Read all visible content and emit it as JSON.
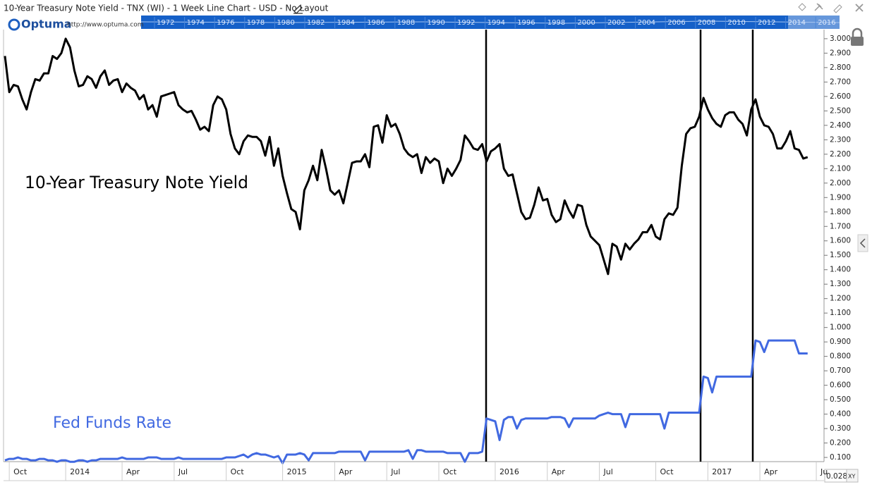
{
  "chart_data": {
    "type": "line",
    "title": "10-Year Treasury Note Yield - TNX (WI) - 1 Week Line Chart - USD - No Layout",
    "categories": [
      null,
      "Oct",
      null,
      null,
      null,
      null,
      null,
      null,
      null,
      null,
      null,
      null,
      null,
      null,
      "2014",
      null,
      null,
      null,
      null,
      null,
      null,
      null,
      null,
      null,
      null,
      null,
      null,
      "Apr",
      null,
      null,
      null,
      null,
      null,
      null,
      null,
      null,
      null,
      null,
      null,
      "Jul",
      null,
      null,
      null,
      null,
      null,
      null,
      null,
      null,
      null,
      null,
      null,
      "Oct",
      null,
      null,
      null,
      null,
      null,
      null,
      null,
      null,
      null,
      null,
      null,
      null,
      "2015",
      null,
      null,
      null,
      null,
      null,
      null,
      null,
      null,
      null,
      null,
      null,
      "Apr",
      null,
      null,
      null,
      null,
      null,
      null,
      null,
      null,
      null,
      null,
      null,
      "Jul",
      null,
      null,
      null,
      null,
      null,
      null,
      null,
      null,
      null,
      null,
      null,
      "Oct",
      null,
      null,
      null,
      null,
      null,
      null,
      null,
      null,
      null,
      null,
      null,
      null,
      "2016",
      null,
      null,
      null,
      null,
      null,
      null,
      null,
      null,
      null,
      null,
      null,
      "Apr",
      null,
      null,
      null,
      null,
      null,
      null,
      null,
      null,
      null,
      null,
      null,
      "Jul",
      null,
      null,
      null,
      null,
      null,
      null,
      null,
      null,
      null,
      null,
      null,
      null,
      "Oct",
      null,
      null,
      null,
      null,
      null,
      null,
      null,
      null,
      null,
      null,
      null,
      "2017",
      null,
      null,
      null,
      null,
      null,
      null,
      null,
      null,
      null,
      null,
      null,
      "Apr",
      null,
      null,
      null,
      null,
      null,
      null,
      null,
      null,
      null,
      null,
      null,
      null,
      "Ju"
    ],
    "series": [
      {
        "name": "10-Year Treasury Note Yield",
        "color": "#000000",
        "values": [
          2.88,
          2.63,
          2.68,
          2.67,
          2.58,
          2.51,
          2.63,
          2.72,
          2.71,
          2.76,
          2.76,
          2.88,
          2.86,
          2.9,
          3.0,
          2.94,
          2.78,
          2.67,
          2.68,
          2.74,
          2.72,
          2.66,
          2.74,
          2.78,
          2.68,
          2.71,
          2.72,
          2.63,
          2.69,
          2.66,
          2.64,
          2.58,
          2.61,
          2.51,
          2.54,
          2.46,
          2.6,
          2.61,
          2.62,
          2.63,
          2.54,
          2.51,
          2.49,
          2.5,
          2.44,
          2.37,
          2.39,
          2.36,
          2.54,
          2.6,
          2.58,
          2.51,
          2.34,
          2.24,
          2.2,
          2.29,
          2.33,
          2.32,
          2.32,
          2.29,
          2.19,
          2.32,
          2.12,
          2.24,
          2.05,
          1.93,
          1.82,
          1.8,
          1.68,
          1.95,
          2.02,
          2.12,
          2.02,
          2.23,
          2.1,
          1.95,
          1.92,
          1.95,
          1.86,
          2.0,
          2.14,
          2.15,
          2.15,
          2.2,
          2.11,
          2.39,
          2.4,
          2.28,
          2.47,
          2.39,
          2.41,
          2.34,
          2.24,
          2.2,
          2.18,
          2.2,
          2.07,
          2.18,
          2.14,
          2.17,
          2.15,
          2.0,
          2.1,
          2.05,
          2.1,
          2.16,
          2.33,
          2.29,
          2.24,
          2.23,
          2.27,
          2.15,
          2.22,
          2.24,
          2.27,
          2.1,
          2.05,
          2.06,
          1.93,
          1.8,
          1.75,
          1.76,
          1.85,
          1.97,
          1.88,
          1.89,
          1.78,
          1.73,
          1.75,
          1.88,
          1.81,
          1.76,
          1.85,
          1.84,
          1.71,
          1.63,
          1.6,
          1.57,
          1.47,
          1.37,
          1.58,
          1.56,
          1.47,
          1.58,
          1.54,
          1.58,
          1.61,
          1.66,
          1.66,
          1.71,
          1.63,
          1.61,
          1.75,
          1.79,
          1.78,
          1.83,
          2.12,
          2.34,
          2.38,
          2.39,
          2.46,
          2.59,
          2.51,
          2.45,
          2.41,
          2.39,
          2.47,
          2.49,
          2.49,
          2.44,
          2.41,
          2.33,
          2.51,
          2.58,
          2.46,
          2.4,
          2.39,
          2.34,
          2.24,
          2.24,
          2.29,
          2.36,
          2.24,
          2.23,
          2.17,
          2.18,
          null,
          null
        ]
      },
      {
        "name": "Fed Funds Rate",
        "color": "#4169e1",
        "values": [
          0.08,
          0.09,
          0.09,
          0.1,
          0.09,
          0.09,
          0.08,
          0.08,
          0.09,
          0.09,
          0.08,
          0.08,
          0.07,
          0.08,
          0.08,
          0.07,
          0.07,
          0.08,
          0.08,
          0.07,
          0.08,
          0.08,
          0.09,
          0.09,
          0.09,
          0.09,
          0.09,
          0.1,
          0.09,
          0.09,
          0.09,
          0.09,
          0.09,
          0.1,
          0.1,
          0.1,
          0.09,
          0.09,
          0.09,
          0.09,
          0.1,
          0.09,
          0.09,
          0.09,
          0.09,
          0.09,
          0.09,
          0.09,
          0.09,
          0.09,
          0.09,
          0.1,
          0.1,
          0.1,
          0.11,
          0.12,
          0.1,
          0.12,
          0.13,
          0.12,
          0.12,
          0.11,
          0.1,
          0.11,
          0.06,
          0.12,
          0.12,
          0.12,
          0.13,
          0.12,
          0.08,
          0.13,
          0.13,
          0.13,
          0.13,
          0.13,
          0.13,
          0.14,
          0.14,
          0.14,
          0.14,
          0.14,
          0.14,
          0.08,
          0.14,
          0.14,
          0.14,
          0.14,
          0.14,
          0.14,
          0.14,
          0.14,
          0.14,
          0.15,
          0.09,
          0.15,
          0.15,
          0.14,
          0.14,
          0.14,
          0.14,
          0.14,
          0.13,
          0.13,
          0.13,
          0.13,
          0.07,
          0.13,
          0.13,
          0.13,
          0.14,
          0.37,
          0.36,
          0.35,
          0.22,
          0.36,
          0.38,
          0.38,
          0.3,
          0.36,
          0.37,
          0.37,
          0.37,
          0.37,
          0.37,
          0.37,
          0.38,
          0.38,
          0.38,
          0.37,
          0.31,
          0.37,
          0.37,
          0.37,
          0.37,
          0.37,
          0.37,
          0.39,
          0.4,
          0.41,
          0.4,
          0.4,
          0.4,
          0.31,
          0.4,
          0.4,
          0.4,
          0.4,
          0.4,
          0.4,
          0.4,
          0.4,
          0.3,
          0.41,
          0.41,
          0.41,
          0.41,
          0.41,
          0.41,
          0.41,
          0.41,
          0.66,
          0.65,
          0.55,
          0.66,
          0.66,
          0.66,
          0.66,
          0.66,
          0.66,
          0.66,
          0.66,
          0.66,
          0.91,
          0.9,
          0.83,
          0.91,
          0.91,
          0.91,
          0.91,
          0.91,
          0.91,
          0.91,
          0.82,
          0.82,
          0.82,
          null,
          null
        ]
      }
    ],
    "ylim": [
      0.071,
      3.063
    ],
    "yticks": [
      {
        "value": 0.1,
        "label": "0.100"
      },
      {
        "value": 0.2,
        "label": "0.200"
      },
      {
        "value": 0.3,
        "label": "0.300"
      },
      {
        "value": 0.4,
        "label": "0.400"
      },
      {
        "value": 0.5,
        "label": "0.500"
      },
      {
        "value": 0.6,
        "label": "0.600"
      },
      {
        "value": 0.7,
        "label": "0.700"
      },
      {
        "value": 0.8,
        "label": "0.800"
      },
      {
        "value": 0.9,
        "label": "0.900"
      },
      {
        "value": 1.0,
        "label": "1.000"
      },
      {
        "value": 1.1,
        "label": "1.100"
      },
      {
        "value": 1.2,
        "label": "1.200"
      },
      {
        "value": 1.3,
        "label": "1.300"
      },
      {
        "value": 1.4,
        "label": "1.400"
      },
      {
        "value": 1.5,
        "label": "1.500"
      },
      {
        "value": 1.6,
        "label": "1.600"
      },
      {
        "value": 1.7,
        "label": "1.700"
      },
      {
        "value": 1.8,
        "label": "1.800"
      },
      {
        "value": 1.9,
        "label": "1.900"
      },
      {
        "value": 2.0,
        "label": "2.000"
      },
      {
        "value": 2.1,
        "label": "2.100"
      },
      {
        "value": 2.2,
        "label": "2.200"
      },
      {
        "value": 2.3,
        "label": "2.300"
      },
      {
        "value": 2.4,
        "label": "2.400"
      },
      {
        "value": 2.5,
        "label": "2.500"
      },
      {
        "value": 2.6,
        "label": "2.600"
      },
      {
        "value": 2.7,
        "label": "2.700"
      },
      {
        "value": 2.8,
        "label": "2.800"
      },
      {
        "value": 2.9,
        "label": "2.900"
      },
      {
        "value": 3.0,
        "label": "3.000"
      }
    ],
    "grid": false
  },
  "navigator": {
    "years": [
      "1972",
      "1974",
      "1976",
      "1978",
      "1980",
      "1982",
      "1984",
      "1986",
      "1988",
      "1990",
      "1992",
      "1994",
      "1996",
      "1998",
      "2000",
      "2002",
      "2004",
      "2006",
      "2008",
      "2010",
      "2012",
      "2014",
      "2016"
    ]
  },
  "logo": {
    "name": "Optuma",
    "url": "http://www.optuma.com"
  },
  "status": {
    "readout": "0.028:",
    "mode": "XY"
  }
}
